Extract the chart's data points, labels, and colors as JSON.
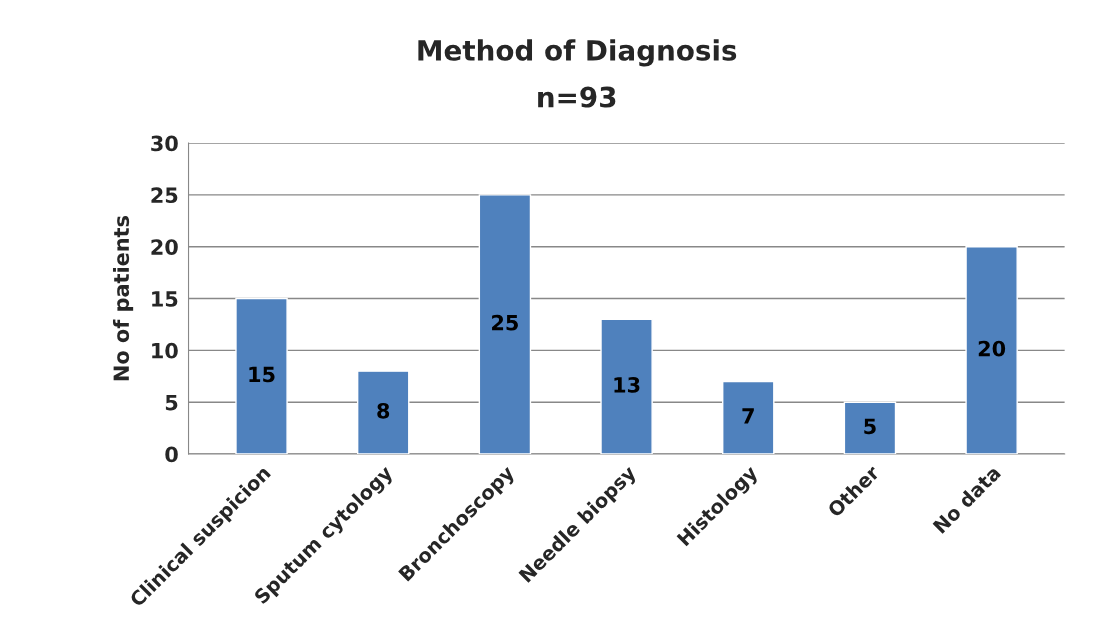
{
  "chart_data": {
    "type": "bar",
    "title": "Method of Diagnosis",
    "subtitle": "n=93",
    "ylabel": "No of patients",
    "categories": [
      "Clinical suspicion",
      "Sputum cytology",
      "Bronchoscopy",
      "Needle biopsy",
      "Histology",
      "Other",
      "No data"
    ],
    "values": [
      15,
      8,
      25,
      13,
      7,
      5,
      20
    ],
    "color": "#4f81bd",
    "data_labels": true,
    "ylim": [
      0,
      30
    ],
    "yticks": [
      0,
      5,
      10,
      15,
      20,
      25,
      30
    ],
    "grid": "y",
    "legend": false
  }
}
